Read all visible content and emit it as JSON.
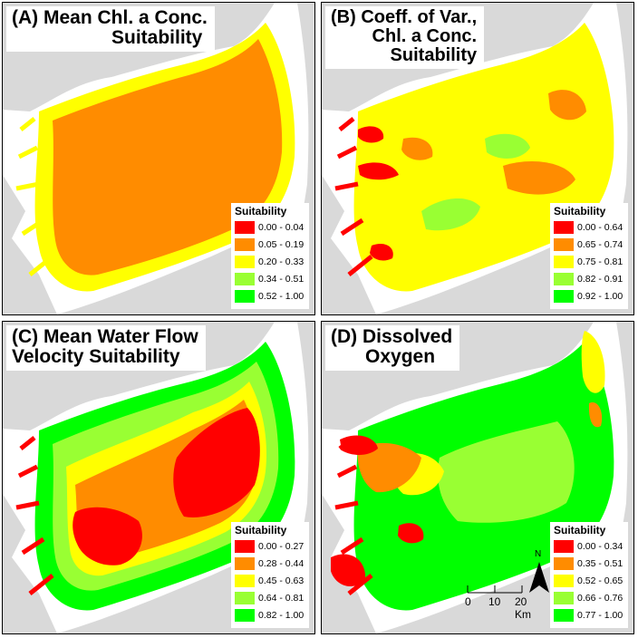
{
  "colors": {
    "land": "#d9d9d9",
    "water": "#ffffff",
    "red": "#ff0000",
    "orange": "#ff8c00",
    "yellow": "#ffff00",
    "light_green": "#99ff33",
    "green": "#00ff00",
    "border": "#000000"
  },
  "panels": [
    {
      "id": "A",
      "title_lines": [
        "(A) Mean Chl. a Conc.",
        "Suitability"
      ],
      "legend_title": "Suitability",
      "legend": [
        {
          "label": "0.00 - 0.04",
          "color": "#ff0000"
        },
        {
          "label": "0.05 - 0.19",
          "color": "#ff8c00"
        },
        {
          "label": "0.20 - 0.33",
          "color": "#ffff00"
        },
        {
          "label": "0.34 - 0.51",
          "color": "#99ff33"
        },
        {
          "label": "0.52 - 1.00",
          "color": "#00ff00"
        }
      ]
    },
    {
      "id": "B",
      "title_lines": [
        "(B) Coeff. of Var.,",
        "Chl. a Conc.",
        "Suitability"
      ],
      "legend_title": "Suitability",
      "legend": [
        {
          "label": "0.00 - 0.64",
          "color": "#ff0000"
        },
        {
          "label": "0.65 - 0.74",
          "color": "#ff8c00"
        },
        {
          "label": "0.75 - 0.81",
          "color": "#ffff00"
        },
        {
          "label": "0.82 - 0.91",
          "color": "#99ff33"
        },
        {
          "label": "0.92 - 1.00",
          "color": "#00ff00"
        }
      ]
    },
    {
      "id": "C",
      "title_lines": [
        "(C) Mean Water Flow",
        "Velocity Suitability"
      ],
      "legend_title": "Suitability",
      "legend": [
        {
          "label": "0.00 - 0.27",
          "color": "#ff0000"
        },
        {
          "label": "0.28 - 0.44",
          "color": "#ff8c00"
        },
        {
          "label": "0.45 - 0.63",
          "color": "#ffff00"
        },
        {
          "label": "0.64 - 0.81",
          "color": "#99ff33"
        },
        {
          "label": "0.82 - 1.00",
          "color": "#00ff00"
        }
      ]
    },
    {
      "id": "D",
      "title_lines": [
        "(D) Dissolved",
        "Oxygen"
      ],
      "legend_title": "Suitability",
      "legend": [
        {
          "label": "0.00 - 0.34",
          "color": "#ff0000"
        },
        {
          "label": "0.35 - 0.51",
          "color": "#ff8c00"
        },
        {
          "label": "0.52 - 0.65",
          "color": "#ffff00"
        },
        {
          "label": "0.66 - 0.76",
          "color": "#99ff33"
        },
        {
          "label": "0.77 - 1.00",
          "color": "#00ff00"
        }
      ]
    }
  ],
  "scale_bar": {
    "ticks": [
      "0",
      "10",
      "20 Km"
    ]
  },
  "north_arrow": {
    "label": "N"
  }
}
